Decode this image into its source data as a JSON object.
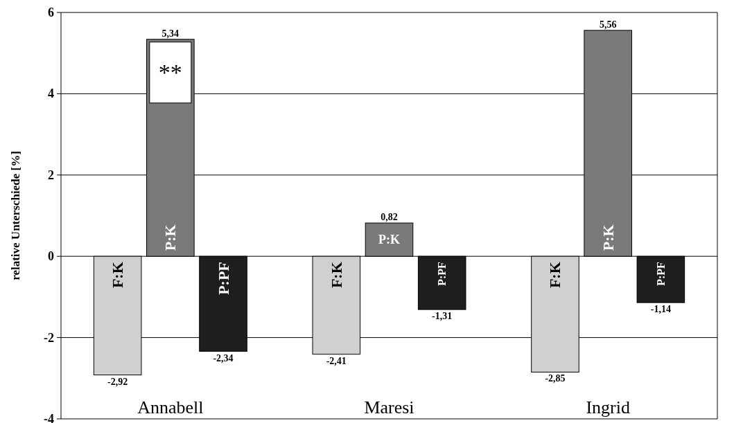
{
  "chart_data": {
    "type": "bar",
    "ylabel": "relative Unterschiede [%]",
    "categories": [
      "Annabell",
      "Maresi",
      "Ingrid"
    ],
    "series": [
      {
        "name": "F:K",
        "color": "#d0d0d0",
        "values": [
          -2.92,
          -2.41,
          -2.85
        ],
        "value_labels": [
          "-2,92",
          "-2,41",
          "-2,85"
        ]
      },
      {
        "name": "P:K",
        "color": "#7a7a7a",
        "values": [
          5.34,
          0.82,
          5.56
        ],
        "value_labels": [
          "5,34",
          "0,82",
          "5,56"
        ]
      },
      {
        "name": "P:PF",
        "color": "#1e1e1e",
        "values": [
          -2.34,
          -1.31,
          -1.14
        ],
        "value_labels": [
          "-2,34",
          "-1,31",
          "-1,14"
        ]
      }
    ],
    "ylim": [
      -4,
      6
    ],
    "yticks": [
      -4,
      -2,
      0,
      2,
      4,
      6
    ],
    "grid": "y",
    "annotations": [
      {
        "text": "**",
        "x": "Annabell",
        "y": 5.34
      }
    ]
  }
}
